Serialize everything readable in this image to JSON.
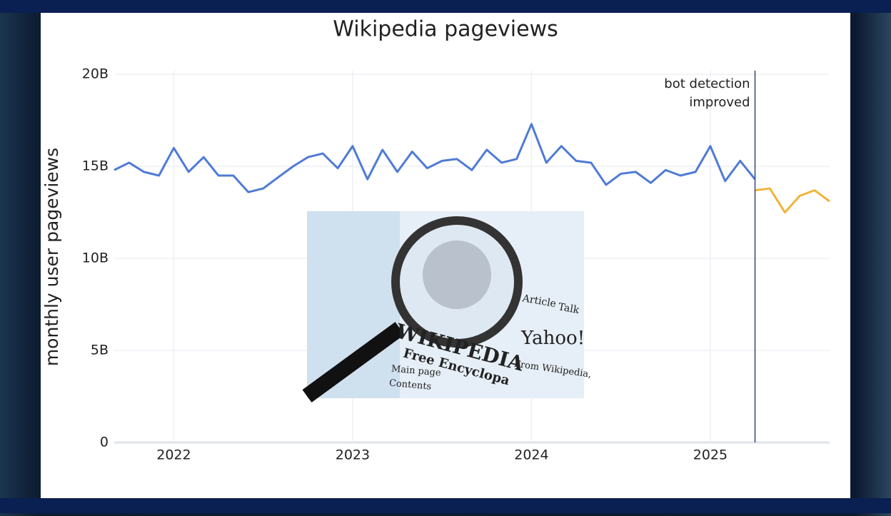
{
  "chart_data": {
    "type": "line",
    "title": "Wikipedia pageviews",
    "y_label": "monthly user pageviews",
    "xlim": [
      2021.667,
      2025.667
    ],
    "xticks": [
      2022,
      2023,
      2024,
      2025
    ],
    "ylim": [
      0,
      20.2
    ],
    "yticks": [
      0,
      {
        "value": 5,
        "label": "5B"
      },
      {
        "value": 10,
        "label": "10B"
      },
      {
        "value": 15,
        "label": "15B"
      },
      {
        "value": 20,
        "label": "20B"
      }
    ],
    "grid": true,
    "series": [
      {
        "color": "#4f7bd6",
        "x": [
          2021.667,
          2021.75,
          2021.833,
          2021.917,
          2022,
          2022.083,
          2022.167,
          2022.25,
          2022.333,
          2022.417,
          2022.5,
          2022.583,
          2022.667,
          2022.75,
          2022.833,
          2022.917,
          2023,
          2023.083,
          2023.167,
          2023.25,
          2023.333,
          2023.417,
          2023.5,
          2023.583,
          2023.667,
          2023.75,
          2023.833,
          2023.917,
          2024,
          2024.083,
          2024.167,
          2024.25,
          2024.333,
          2024.417,
          2024.5,
          2024.583,
          2024.667,
          2024.75,
          2024.833,
          2024.917,
          2025,
          2025.083,
          2025.167,
          2025.25
        ],
        "values": [
          14.8,
          15.2,
          14.7,
          14.5,
          16.0,
          14.7,
          15.5,
          14.5,
          14.5,
          13.6,
          13.8,
          14.4,
          15.0,
          15.5,
          15.7,
          14.9,
          16.1,
          14.3,
          15.9,
          14.7,
          15.8,
          14.9,
          15.3,
          15.4,
          14.8,
          15.9,
          15.2,
          15.4,
          17.3,
          15.2,
          16.1,
          15.3,
          15.2,
          14.0,
          14.6,
          14.7,
          14.1,
          14.8,
          14.5,
          14.7,
          16.1,
          14.2,
          15.3,
          14.3
        ]
      },
      {
        "color": "#f0b43c",
        "x": [
          2025.25,
          2025.333,
          2025.417,
          2025.5,
          2025.583,
          2025.667
        ],
        "values": [
          13.7,
          13.8,
          12.5,
          13.4,
          13.7,
          13.1
        ]
      }
    ],
    "annotation": {
      "x": 2025.25,
      "lines": [
        "bot detection",
        "improved"
      ]
    },
    "inset_image": {
      "texts": [
        "WIKIPEDIA",
        "Free Encyclopa",
        "Yahoo!",
        "Article",
        "Talk",
        "Main page",
        "Contents",
        "From Wikipedia,"
      ]
    }
  }
}
